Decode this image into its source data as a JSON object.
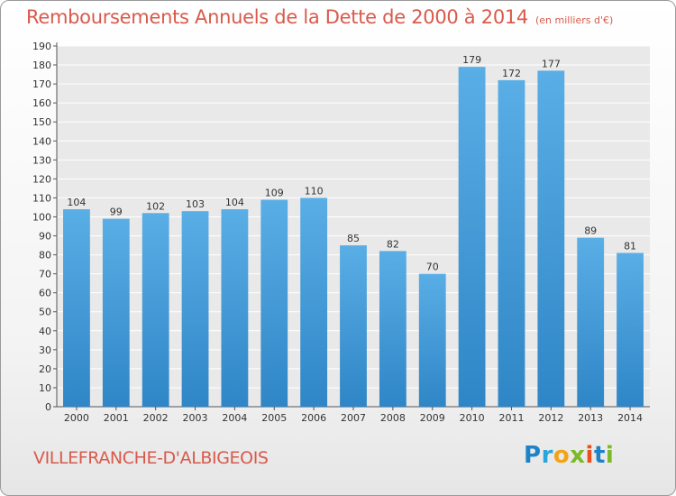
{
  "header": {
    "title": "Remboursements Annuels de la Dette de 2000 à 2014",
    "unit": "(en milliers d'€)"
  },
  "footer": {
    "city": "VILLEFRANCHE-D'ALBIGEOIS",
    "logo": [
      "P",
      "r",
      "o",
      "x",
      "i",
      "t",
      "i"
    ]
  },
  "colors": {
    "bar_light": "#5aaee6",
    "bar_dark": "#2f86c6",
    "title": "#d85a4b",
    "grid": "#ffffff",
    "plot_bg": "#e9e9e9"
  },
  "chart_data": {
    "type": "bar",
    "title": "Remboursements Annuels de la Dette de 2000 à 2014",
    "unit": "(en milliers d'€)",
    "categories": [
      "2000",
      "2001",
      "2002",
      "2003",
      "2004",
      "2005",
      "2006",
      "2007",
      "2008",
      "2009",
      "2010",
      "2011",
      "2012",
      "2013",
      "2014"
    ],
    "values": [
      104,
      99,
      102,
      103,
      104,
      109,
      110,
      85,
      82,
      70,
      179,
      172,
      177,
      89,
      81
    ],
    "ylim": [
      0,
      190
    ],
    "ytick_step": 10,
    "grid": true,
    "legend": "none"
  }
}
